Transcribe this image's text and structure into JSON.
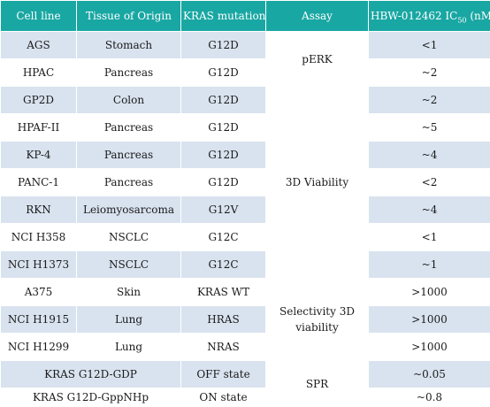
{
  "headers": {
    "cell_line": "Cell line",
    "tissue": "Tissue of Origin",
    "mutation": "KRAS mutation",
    "assay": "Assay",
    "ic50_prefix": "HBW-012462 IC",
    "ic50_sub": "50",
    "ic50_suffix": " (nM)"
  },
  "rows": [
    {
      "cell_line": "AGS",
      "tissue": "Stomach",
      "mutation": "G12D",
      "ic50": "<1"
    },
    {
      "cell_line": "HPAC",
      "tissue": "Pancreas",
      "mutation": "G12D",
      "ic50": "~2"
    },
    {
      "cell_line": "GP2D",
      "tissue": "Colon",
      "mutation": "G12D",
      "ic50": "~2"
    },
    {
      "cell_line": "HPAF-II",
      "tissue": "Pancreas",
      "mutation": "G12D",
      "ic50": "~5"
    },
    {
      "cell_line": "KP-4",
      "tissue": "Pancreas",
      "mutation": "G12D",
      "ic50": "~4"
    },
    {
      "cell_line": "PANC-1",
      "tissue": "Pancreas",
      "mutation": "G12D",
      "ic50": "<2"
    },
    {
      "cell_line": "RKN",
      "tissue": "Leiomyosarcoma",
      "mutation": "G12V",
      "ic50": "~4"
    },
    {
      "cell_line": "NCI H358",
      "tissue": "NSCLC",
      "mutation": "G12C",
      "ic50": "<1"
    },
    {
      "cell_line": "NCI H1373",
      "tissue": "NSCLC",
      "mutation": "G12C",
      "ic50": "~1"
    },
    {
      "cell_line": "A375",
      "tissue": "Skin",
      "mutation": "KRAS WT",
      "ic50": ">1000"
    },
    {
      "cell_line": "NCI H1915",
      "tissue": "Lung",
      "mutation": "HRAS",
      "ic50": ">1000"
    },
    {
      "cell_line": "NCI H1299",
      "tissue": "Lung",
      "mutation": "NRAS",
      "ic50": ">1000"
    }
  ],
  "spr_rows": [
    {
      "protein": "KRAS G12D-GDP",
      "state": "OFF state",
      "ic50": "~0.05"
    },
    {
      "protein": "KRAS G12D-GppNHp",
      "state": "ON state",
      "ic50": "~0.8"
    }
  ],
  "assays": {
    "perk": "pERK",
    "viability": "3D Viability",
    "selectivity": "Selectivity 3D viability",
    "spr": "SPR"
  },
  "colors": {
    "header_bg": "#19a7a3",
    "shaded_row": "#d9e3ef",
    "header_text": "#ffffff"
  }
}
